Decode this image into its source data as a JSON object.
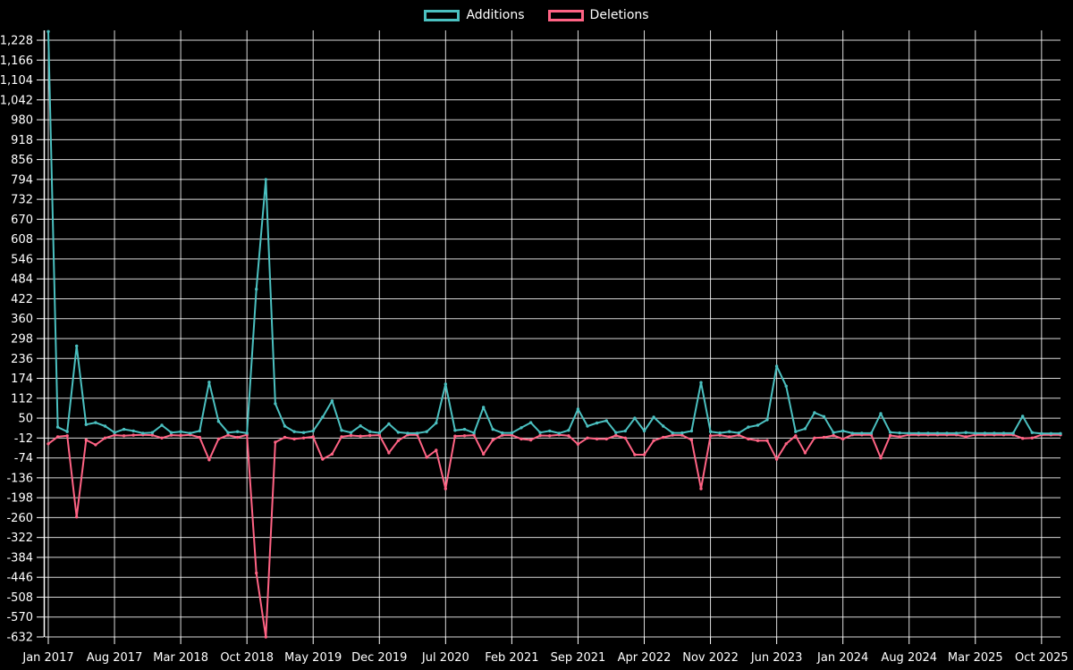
{
  "legend": {
    "items": [
      {
        "label": "Additions",
        "color": "#4bc0c0"
      },
      {
        "label": "Deletions",
        "color": "#ff6384"
      }
    ]
  },
  "chart_data": {
    "type": "line",
    "title": "",
    "xlabel": "",
    "ylabel": "",
    "legend_position": "top-center",
    "grid": true,
    "background": "#000000",
    "grid_color": "#ffffff",
    "text_color": "#ffffff",
    "x_start": "Jan 2017",
    "x_end": "Dec 2025",
    "x_interval": "month",
    "x_tick_labels": [
      "Jan 2017",
      "Aug 2017",
      "Mar 2018",
      "Oct 2018",
      "May 2019",
      "Dec 2019",
      "Jul 2020",
      "Feb 2021",
      "Sep 2021",
      "Apr 2022",
      "Nov 2022",
      "Jun 2023",
      "Jan 2024",
      "Aug 2024",
      "Mar 2025",
      "Oct 2025"
    ],
    "x_tick_month_indices": [
      0,
      7,
      14,
      21,
      28,
      35,
      42,
      49,
      56,
      63,
      70,
      77,
      84,
      91,
      98,
      105
    ],
    "y_ticks": [
      1228,
      1166,
      1104,
      1042,
      980,
      918,
      856,
      794,
      732,
      670,
      608,
      546,
      484,
      422,
      360,
      298,
      236,
      174,
      112,
      50,
      -12,
      -74,
      -136,
      -198,
      -260,
      -322,
      -384,
      -446,
      -508,
      -570,
      -632
    ],
    "ylim": [
      -632,
      1228
    ],
    "series": [
      {
        "name": "Additions",
        "color": "#4bc0c0",
        "values": [
          1255,
          22,
          8,
          275,
          30,
          36,
          25,
          5,
          15,
          10,
          3,
          5,
          28,
          5,
          8,
          3,
          10,
          162,
          40,
          5,
          8,
          3,
          452,
          794,
          95,
          25,
          8,
          5,
          10,
          53,
          104,
          12,
          5,
          26,
          8,
          4,
          32,
          6,
          3,
          3,
          8,
          35,
          156,
          12,
          15,
          4,
          84,
          15,
          4,
          4,
          20,
          36,
          5,
          10,
          3,
          12,
          78,
          25,
          35,
          42,
          5,
          10,
          50,
          10,
          53,
          25,
          4,
          4,
          10,
          161,
          8,
          4,
          8,
          4,
          22,
          28,
          45,
          212,
          150,
          8,
          17,
          67,
          55,
          5,
          10,
          3,
          3,
          3,
          64,
          6,
          4,
          3,
          3,
          3,
          3,
          3,
          3,
          5,
          3,
          3,
          3,
          3,
          3,
          56,
          5,
          2,
          2,
          2
        ]
      },
      {
        "name": "Deletions",
        "color": "#ff6384",
        "values": [
          -30,
          -8,
          -5,
          -258,
          -18,
          -33,
          -12,
          -3,
          -5,
          -3,
          -2,
          -3,
          -12,
          -3,
          -4,
          -2,
          -10,
          -80,
          -15,
          -3,
          -10,
          -2,
          -433,
          -632,
          -25,
          -10,
          -15,
          -12,
          -8,
          -78,
          -62,
          -8,
          -4,
          -6,
          -4,
          -3,
          -58,
          -20,
          -2,
          -2,
          -72,
          -50,
          -170,
          -6,
          -5,
          -3,
          -62,
          -18,
          -3,
          -3,
          -15,
          -18,
          -4,
          -5,
          -2,
          -5,
          -31,
          -12,
          -15,
          -15,
          -4,
          -12,
          -64,
          -64,
          -20,
          -10,
          -3,
          -3,
          -18,
          -170,
          -5,
          -3,
          -8,
          -3,
          -15,
          -20,
          -20,
          -78,
          -30,
          -5,
          -58,
          -12,
          -10,
          -4,
          -15,
          -2,
          -2,
          -2,
          -74,
          -4,
          -8,
          -2,
          -2,
          -2,
          -2,
          -2,
          -2,
          -8,
          -2,
          -2,
          -2,
          -2,
          -2,
          -13,
          -12,
          -2,
          -2,
          -2
        ]
      }
    ]
  }
}
